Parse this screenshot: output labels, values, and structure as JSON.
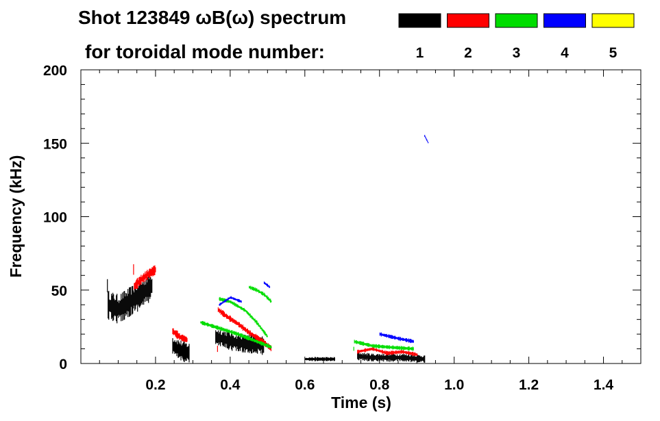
{
  "header": {
    "title": "Shot 123849 ωB(ω) spectrum",
    "subtitle": "for toroidal mode number:"
  },
  "chart_data": {
    "type": "heatmap",
    "title": "Shot 123849 ωB(ω) spectrum",
    "xlabel": "Time (s)",
    "ylabel": "Frequency (kHz)",
    "xlim": [
      0,
      1.5
    ],
    "ylim": [
      0,
      200
    ],
    "x_ticks": [
      0.2,
      0.4,
      0.6,
      0.8,
      1.0,
      1.2,
      1.4
    ],
    "x_tick_labels": [
      "0.2",
      "0.4",
      "0.6",
      "0.8",
      "1.0",
      "1.2",
      "1.4"
    ],
    "y_ticks": [
      0,
      50,
      100,
      150,
      200
    ],
    "y_tick_labels": [
      "0",
      "50",
      "100",
      "150",
      "200"
    ],
    "grid": false,
    "legend_placement": "top-right",
    "legend_title": "for toroidal mode number:",
    "series": [
      {
        "name": "1",
        "color": "#000000",
        "segments": [
          {
            "t": [
              0.07,
              0.1,
              0.13,
              0.16,
              0.19
            ],
            "f": [
              40,
              37,
              42,
              47,
              53
            ],
            "width_khz": 14
          },
          {
            "t": [
              0.245,
              0.265,
              0.29
            ],
            "f": [
              12,
              9,
              7
            ],
            "width_khz": 10
          },
          {
            "t": [
              0.36,
              0.39,
              0.42,
              0.46,
              0.49
            ],
            "f": [
              18,
              16,
              14,
              13,
              12
            ],
            "width_khz": 9
          },
          {
            "t": [
              0.6,
              0.64,
              0.68
            ],
            "f": [
              3,
              3,
              3
            ],
            "width_khz": 2
          },
          {
            "t": [
              0.74,
              0.78,
              0.82,
              0.86,
              0.92
            ],
            "f": [
              5,
              4,
              4,
              4,
              3
            ],
            "width_khz": 4
          }
        ]
      },
      {
        "name": "2",
        "color": "#ff0000",
        "segments": [
          {
            "t": [
              0.14,
              0.16,
              0.18,
              0.2
            ],
            "f": [
              52,
              57,
              61,
              64
            ],
            "width_khz": 5
          },
          {
            "t": [
              0.245,
              0.265,
              0.285
            ],
            "f": [
              22,
              18,
              16
            ],
            "width_khz": 4
          },
          {
            "t": [
              0.365,
              0.39,
              0.42,
              0.45,
              0.48,
              0.51
            ],
            "f": [
              37,
              32,
              27,
              21,
              16,
              10
            ],
            "width_khz": 3
          },
          {
            "t": [
              0.74,
              0.78,
              0.82,
              0.86,
              0.9
            ],
            "f": [
              8,
              10,
              7,
              8,
              6
            ],
            "width_khz": 2
          }
        ]
      },
      {
        "name": "3",
        "color": "#00dd00",
        "segments": [
          {
            "t": [
              0.32,
              0.37,
              0.42,
              0.47,
              0.51
            ],
            "f": [
              28,
              24,
              20,
              15,
              11
            ],
            "width_khz": 2
          },
          {
            "t": [
              0.37,
              0.4,
              0.44,
              0.47,
              0.5
            ],
            "f": [
              44,
              42,
              36,
              28,
              18
            ],
            "width_khz": 2
          },
          {
            "t": [
              0.45,
              0.47,
              0.49,
              0.51
            ],
            "f": [
              52,
              50,
              47,
              42
            ],
            "width_khz": 2
          },
          {
            "t": [
              0.73,
              0.78,
              0.83,
              0.89
            ],
            "f": [
              15,
              12,
              11,
              10
            ],
            "width_khz": 2
          }
        ]
      },
      {
        "name": "4",
        "color": "#0000ff",
        "segments": [
          {
            "t": [
              0.37,
              0.4,
              0.43
            ],
            "f": [
              40,
              45,
              42
            ],
            "width_khz": 1.5
          },
          {
            "t": [
              0.49,
              0.505
            ],
            "f": [
              55,
              52
            ],
            "width_khz": 1.5
          },
          {
            "t": [
              0.8,
              0.85,
              0.89
            ],
            "f": [
              20,
              17,
              15
            ],
            "width_khz": 2
          },
          {
            "t": [
              0.92,
              0.93
            ],
            "f": [
              155,
              150
            ],
            "width_khz": 1
          }
        ]
      },
      {
        "name": "5",
        "color": "#ffff00",
        "segments": []
      }
    ]
  }
}
